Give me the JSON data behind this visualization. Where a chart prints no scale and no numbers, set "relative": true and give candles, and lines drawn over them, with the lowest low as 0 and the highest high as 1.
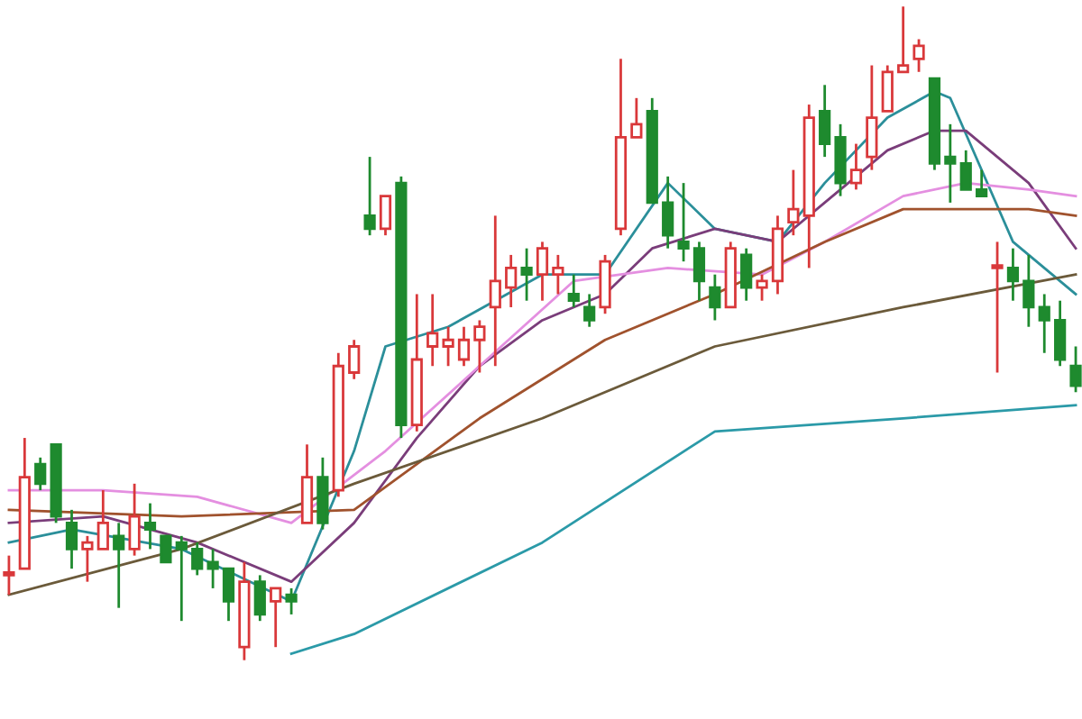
{
  "chart_data": {
    "type": "candlestick",
    "relative": true,
    "categories": [
      null,
      null,
      null,
      null,
      null,
      null,
      null,
      null,
      null,
      null,
      null,
      null,
      null,
      null,
      null,
      null,
      null,
      null,
      null,
      null,
      null,
      null,
      null,
      null,
      null,
      null,
      null,
      null,
      null,
      null,
      null,
      null,
      null,
      null,
      null,
      null,
      null,
      null,
      null,
      null,
      null,
      null,
      null,
      null,
      null,
      null,
      null,
      null,
      null,
      null,
      null,
      null,
      null,
      null,
      null,
      null,
      null,
      null,
      null,
      null,
      null,
      null,
      null,
      null,
      null,
      null,
      null,
      null,
      null
    ],
    "ohlc": [
      [
        0.13,
        0.16,
        0.1,
        0.13
      ],
      [
        0.14,
        0.34,
        0.14,
        0.28
      ],
      [
        0.3,
        0.31,
        0.26,
        0.27
      ],
      [
        0.33,
        0.33,
        0.21,
        0.22
      ],
      [
        0.21,
        0.23,
        0.14,
        0.17
      ],
      [
        0.17,
        0.19,
        0.12,
        0.18
      ],
      [
        0.17,
        0.26,
        0.17,
        0.21
      ],
      [
        0.19,
        0.21,
        0.08,
        0.17
      ],
      [
        0.17,
        0.27,
        0.16,
        0.22
      ],
      [
        0.21,
        0.24,
        0.17,
        0.2
      ],
      [
        0.19,
        0.19,
        0.15,
        0.15
      ],
      [
        0.18,
        0.19,
        0.06,
        0.17
      ],
      [
        0.17,
        0.18,
        0.13,
        0.14
      ],
      [
        0.15,
        0.17,
        0.11,
        0.14
      ],
      [
        0.14,
        0.14,
        0.06,
        0.09
      ],
      [
        0.02,
        0.15,
        0,
        0.12
      ],
      [
        0.12,
        0.13,
        0.06,
        0.07
      ],
      [
        0.09,
        0.11,
        0.02,
        0.11
      ],
      [
        0.1,
        0.11,
        0.07,
        0.09
      ],
      [
        0.21,
        0.33,
        0.21,
        0.28
      ],
      [
        0.28,
        0.31,
        0.2,
        0.21
      ],
      [
        0.26,
        0.47,
        0.25,
        0.45
      ],
      [
        0.44,
        0.49,
        0.43,
        0.48
      ],
      [
        0.68,
        0.77,
        0.65,
        0.66
      ],
      [
        0.66,
        0.71,
        0.65,
        0.71
      ],
      [
        0.73,
        0.74,
        0.34,
        0.36
      ],
      [
        0.36,
        0.56,
        0.35,
        0.46
      ],
      [
        0.48,
        0.56,
        0.45,
        0.5
      ],
      [
        0.48,
        0.51,
        0.45,
        0.49
      ],
      [
        0.46,
        0.51,
        0.45,
        0.49
      ],
      [
        0.49,
        0.52,
        0.44,
        0.51
      ],
      [
        0.54,
        0.68,
        0.45,
        0.58
      ],
      [
        0.57,
        0.62,
        0.54,
        0.6
      ],
      [
        0.6,
        0.63,
        0.55,
        0.59
      ],
      [
        0.59,
        0.64,
        0.55,
        0.63
      ],
      [
        0.59,
        0.62,
        0.56,
        0.6
      ],
      [
        0.56,
        0.59,
        0.54,
        0.55
      ],
      [
        0.54,
        0.56,
        0.51,
        0.52
      ],
      [
        0.54,
        0.62,
        0.53,
        0.61
      ],
      [
        0.66,
        0.92,
        0.65,
        0.8
      ],
      [
        0.8,
        0.86,
        0.8,
        0.82
      ],
      [
        0.84,
        0.86,
        0.7,
        0.7
      ],
      [
        0.7,
        0.74,
        0.63,
        0.65
      ],
      [
        0.64,
        0.73,
        0.61,
        0.63
      ],
      [
        0.63,
        0.64,
        0.55,
        0.58
      ],
      [
        0.57,
        0.59,
        0.52,
        0.54
      ],
      [
        0.54,
        0.64,
        0.54,
        0.63
      ],
      [
        0.62,
        0.63,
        0.55,
        0.57
      ],
      [
        0.57,
        0.59,
        0.55,
        0.58
      ],
      [
        0.58,
        0.68,
        0.56,
        0.66
      ],
      [
        0.67,
        0.75,
        0.65,
        0.69
      ],
      [
        0.68,
        0.85,
        0.6,
        0.83
      ],
      [
        0.84,
        0.88,
        0.77,
        0.79
      ],
      [
        0.8,
        0.82,
        0.71,
        0.73
      ],
      [
        0.73,
        0.79,
        0.72,
        0.75
      ],
      [
        0.77,
        0.91,
        0.75,
        0.83
      ],
      [
        0.84,
        0.91,
        0.84,
        0.9
      ],
      [
        0.9,
        1.0,
        0.9,
        0.91
      ],
      [
        0.92,
        0.95,
        0.9,
        0.94
      ],
      [
        0.89,
        0.89,
        0.75,
        0.76
      ],
      [
        0.77,
        0.82,
        0.7,
        0.76
      ],
      [
        0.76,
        0.78,
        0.72,
        0.72
      ],
      [
        0.72,
        0.75,
        0.71,
        0.71
      ],
      [
        0.6,
        0.64,
        0.44,
        0.6
      ],
      [
        0.6,
        0.63,
        0.55,
        0.58
      ],
      [
        0.58,
        0.62,
        0.51,
        0.54
      ],
      [
        0.54,
        0.56,
        0.47,
        0.52
      ],
      [
        0.52,
        0.55,
        0.45,
        0.46
      ],
      [
        0.45,
        0.48,
        0.41,
        0.42
      ]
    ],
    "colors": [
      "#d9383a",
      "#d9383a",
      "#1e8a2e",
      "#1e8a2e",
      "#1e8a2e",
      "#d9383a",
      "#d9383a",
      "#1e8a2e",
      "#d9383a",
      "#1e8a2e",
      "#1e8a2e",
      "#1e8a2e",
      "#1e8a2e",
      "#1e8a2e",
      "#1e8a2e",
      "#d9383a",
      "#1e8a2e",
      "#d9383a",
      "#1e8a2e",
      "#d9383a",
      "#1e8a2e",
      "#d9383a",
      "#d9383a",
      "#1e8a2e",
      "#d9383a",
      "#1e8a2e",
      "#d9383a",
      "#d9383a",
      "#d9383a",
      "#d9383a",
      "#d9383a",
      "#d9383a",
      "#d9383a",
      "#1e8a2e",
      "#d9383a",
      "#d9383a",
      "#1e8a2e",
      "#1e8a2e",
      "#d9383a",
      "#d9383a",
      "#d9383a",
      "#1e8a2e",
      "#1e8a2e",
      "#1e8a2e",
      "#1e8a2e",
      "#1e8a2e",
      "#d9383a",
      "#1e8a2e",
      "#d9383a",
      "#d9383a",
      "#d9383a",
      "#d9383a",
      "#1e8a2e",
      "#1e8a2e",
      "#d9383a",
      "#d9383a",
      "#d9383a",
      "#d9383a",
      "#d9383a",
      "#1e8a2e",
      "#1e8a2e",
      "#1e8a2e",
      "#1e8a2e",
      "#d9383a",
      "#1e8a2e",
      "#1e8a2e",
      "#1e8a2e",
      "#1e8a2e",
      "#1e8a2e"
    ],
    "series": [
      {
        "type": "line",
        "color": "#2b8f9a",
        "values": [
          0.18,
          null,
          null,
          null,
          0.2,
          null,
          null,
          null,
          null,
          null,
          null,
          0.17,
          null,
          null,
          null,
          null,
          null,
          null,
          0.09,
          null,
          null,
          null,
          0.32,
          null,
          0.48,
          null,
          null,
          null,
          0.51,
          null,
          null,
          null,
          null,
          null,
          0.59,
          null,
          null,
          null,
          0.59,
          null,
          null,
          null,
          0.73,
          null,
          null,
          0.66,
          null,
          null,
          null,
          0.64,
          null,
          null,
          0.73,
          null,
          null,
          null,
          0.83,
          null,
          null,
          0.87,
          0.86,
          null,
          null,
          null,
          0.64,
          null,
          null,
          null,
          0.56
        ]
      },
      {
        "type": "line",
        "color": "#7a3d7a",
        "values": [
          0.21,
          null,
          null,
          null,
          null,
          null,
          0.22,
          null,
          null,
          null,
          null,
          null,
          0.18,
          null,
          null,
          null,
          null,
          null,
          0.12,
          null,
          null,
          null,
          0.21,
          null,
          null,
          null,
          0.34,
          null,
          null,
          null,
          0.45,
          null,
          null,
          null,
          0.52,
          null,
          null,
          null,
          0.56,
          null,
          null,
          0.63,
          null,
          null,
          null,
          0.66,
          null,
          null,
          null,
          0.64,
          null,
          null,
          0.7,
          null,
          null,
          null,
          0.78,
          null,
          null,
          0.81,
          null,
          0.81,
          null,
          null,
          null,
          0.73,
          null,
          null,
          0.63
        ]
      },
      {
        "type": "line",
        "color": "#e48fe0",
        "values": [
          0.26,
          null,
          null,
          null,
          null,
          null,
          0.26,
          null,
          null,
          null,
          null,
          null,
          0.25,
          null,
          null,
          null,
          null,
          null,
          0.21,
          null,
          null,
          null,
          null,
          null,
          0.32,
          null,
          null,
          null,
          null,
          null,
          0.45,
          null,
          null,
          null,
          null,
          null,
          0.58,
          null,
          null,
          null,
          null,
          null,
          0.6,
          null,
          null,
          null,
          null,
          null,
          0.59,
          null,
          null,
          null,
          0.64,
          null,
          null,
          null,
          null,
          0.71,
          null,
          null,
          null,
          0.73,
          null,
          null,
          null,
          0.72,
          null,
          null,
          0.71
        ]
      },
      {
        "type": "line",
        "color": "#a0522d",
        "values": [
          0.23,
          null,
          null,
          null,
          null,
          null,
          null,
          null,
          null,
          null,
          null,
          0.22,
          null,
          null,
          null,
          null,
          null,
          null,
          null,
          null,
          null,
          null,
          0.23,
          null,
          null,
          null,
          null,
          null,
          null,
          null,
          0.37,
          null,
          null,
          null,
          null,
          null,
          null,
          null,
          0.49,
          null,
          null,
          null,
          null,
          null,
          null,
          0.56,
          null,
          null,
          null,
          null,
          null,
          null,
          0.64,
          null,
          null,
          null,
          null,
          0.69,
          null,
          null,
          null,
          0.69,
          null,
          null,
          null,
          0.69,
          null,
          null,
          0.68
        ]
      },
      {
        "type": "line",
        "color": "#6b5a3a",
        "values": [
          0.1,
          null,
          null,
          null,
          null,
          null,
          null,
          null,
          null,
          null,
          null,
          0.17,
          null,
          null,
          null,
          null,
          null,
          null,
          null,
          null,
          null,
          null,
          0.27,
          null,
          null,
          null,
          null,
          null,
          null,
          null,
          null,
          null,
          null,
          null,
          0.37,
          null,
          null,
          null,
          null,
          null,
          null,
          null,
          null,
          null,
          null,
          0.48,
          null,
          null,
          null,
          null,
          null,
          null,
          null,
          null,
          null,
          null,
          null,
          0.54,
          null,
          null,
          null,
          null,
          null,
          null,
          null,
          null,
          null,
          null,
          0.59
        ]
      },
      {
        "type": "line",
        "color": "#2b9aa8",
        "values": [
          null,
          null,
          null,
          null,
          null,
          null,
          null,
          null,
          null,
          null,
          null,
          null,
          null,
          null,
          null,
          null,
          null,
          null,
          0.01,
          null,
          null,
          null,
          0.04,
          null,
          null,
          null,
          null,
          null,
          null,
          null,
          null,
          null,
          null,
          null,
          0.18,
          null,
          null,
          null,
          null,
          null,
          null,
          null,
          null,
          null,
          null,
          0.35,
          null,
          null,
          null,
          null,
          null,
          null,
          null,
          null,
          null,
          null,
          null,
          0.37,
          null,
          null,
          null,
          null,
          null,
          null,
          null,
          null,
          null,
          null,
          0.39
        ]
      }
    ]
  }
}
